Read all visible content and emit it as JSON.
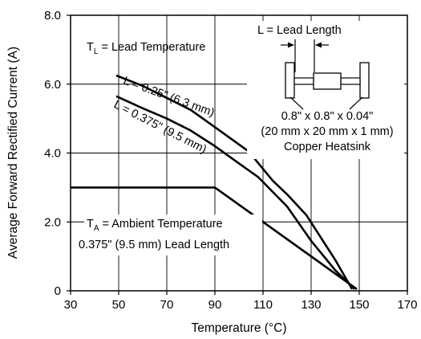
{
  "chart_data": {
    "type": "line",
    "xlabel": "Temperature (°C)",
    "ylabel": "Average Forward Rectified Current (A)",
    "xlim": [
      30,
      170
    ],
    "ylim": [
      0,
      8
    ],
    "x_ticks": [
      "30",
      "50",
      "70",
      "90",
      "110",
      "130",
      "150",
      "170"
    ],
    "y_ticks": [
      "0",
      "2.0",
      "4.0",
      "6.0",
      "8.0"
    ],
    "grid": true,
    "series": [
      {
        "name": "L = 0.25\" (6.3 mm)",
        "x": [
          49,
          60,
          70,
          80,
          90,
          100,
          104,
          114,
          120,
          128,
          140,
          147
        ],
        "y": [
          6.25,
          5.95,
          5.6,
          5.25,
          4.75,
          4.25,
          4.05,
          3.2,
          2.8,
          2.2,
          0.9,
          0.05
        ]
      },
      {
        "name": "L = 0.375\" (9.5 mm)",
        "x": [
          49,
          60,
          70,
          80,
          90,
          100,
          108,
          120,
          130,
          140,
          148
        ],
        "y": [
          5.65,
          5.3,
          5.0,
          4.65,
          4.2,
          3.7,
          3.3,
          2.45,
          1.45,
          0.6,
          0.05
        ]
      },
      {
        "name": "TA",
        "x": [
          30,
          90,
          149
        ],
        "y": [
          3.0,
          3.0,
          0.05
        ]
      }
    ],
    "annotations": {
      "tl_prefix": "T",
      "tl_sub": "L",
      "tl_rest": " = Lead Temperature",
      "ta_prefix": "T",
      "ta_sub": "A",
      "ta_rest": " = Ambient Temperature",
      "ta_line2": "0.375\" (9.5 mm) Lead Length",
      "curve1_label": "L = 0.25\" (6.3 mm)",
      "curve2_label": "L = 0.375\" (9.5 mm)",
      "lead_length": "L = Lead Length",
      "heatsink_line1": "0.8\" x 0.8\" x 0.04\"",
      "heatsink_line2": "(20 mm x 20 mm x 1 mm)",
      "heatsink_line3": "Copper Heatsink"
    }
  }
}
